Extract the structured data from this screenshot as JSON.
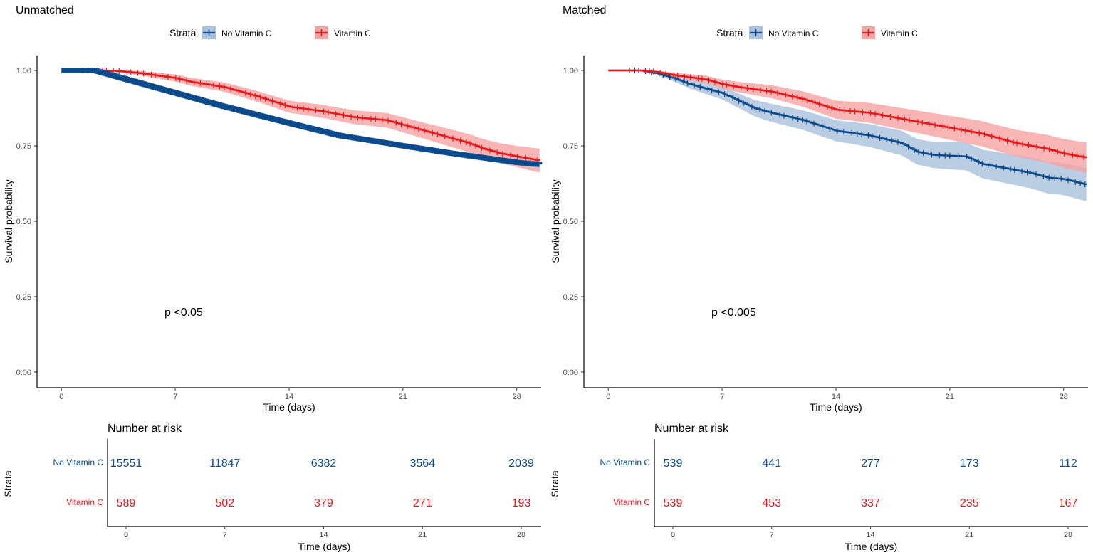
{
  "legend_title": "Strata",
  "axis_labels": {
    "y_main": "Survival probability",
    "x_main": "Time (days)",
    "risk_title": "Number at risk",
    "risk_ylabel": "Strata",
    "risk_x": "Time (days)"
  },
  "colors": {
    "no_vitc": "#0b4a8b",
    "vitc": "#e41a1c",
    "no_vitc_band": "#a9c1dc",
    "vitc_band": "#f5a3a3"
  },
  "chart_data": [
    {
      "type": "line",
      "title": "Unmatched",
      "xlabel": "Time (days)",
      "ylabel": "Survival probability",
      "xlim": [
        -1.5,
        29.5
      ],
      "ylim": [
        0,
        1
      ],
      "x_ticks": [
        0,
        7,
        14,
        21,
        28
      ],
      "y_ticks": [
        0.0,
        0.25,
        0.5,
        0.75,
        1.0
      ],
      "y_tick_labels": [
        "0.00",
        "0.25",
        "0.50",
        "0.75",
        "1.00"
      ],
      "pvalue": "p <0.05",
      "legend": [
        "No Vitamin C",
        "Vitamin C"
      ],
      "series": [
        {
          "name": "No Vitamin C",
          "points": [
            [
              0,
              1.0
            ],
            [
              1.2,
              1.0
            ],
            [
              2.0,
              1.0
            ],
            [
              3,
              0.985
            ],
            [
              5,
              0.955
            ],
            [
              7,
              0.925
            ],
            [
              10,
              0.88
            ],
            [
              14,
              0.825
            ],
            [
              17,
              0.785
            ],
            [
              21,
              0.75
            ],
            [
              24,
              0.725
            ],
            [
              28,
              0.695
            ],
            [
              29.5,
              0.688
            ]
          ],
          "ci_half": [
            [
              0,
              0
            ],
            [
              2,
              0
            ],
            [
              6,
              0.004
            ],
            [
              14,
              0.006
            ],
            [
              21,
              0.007
            ],
            [
              28,
              0.01
            ],
            [
              29.5,
              0.012
            ]
          ]
        },
        {
          "name": "Vitamin C",
          "points": [
            [
              0,
              1.0
            ],
            [
              2.5,
              1.0
            ],
            [
              3.5,
              0.998
            ],
            [
              5,
              0.99
            ],
            [
              7,
              0.975
            ],
            [
              8,
              0.962
            ],
            [
              10,
              0.945
            ],
            [
              12,
              0.915
            ],
            [
              14,
              0.88
            ],
            [
              16,
              0.865
            ],
            [
              18,
              0.845
            ],
            [
              20,
              0.835
            ],
            [
              21,
              0.82
            ],
            [
              23,
              0.79
            ],
            [
              25,
              0.76
            ],
            [
              26,
              0.74
            ],
            [
              27,
              0.725
            ],
            [
              28,
              0.715
            ],
            [
              29.5,
              0.7
            ]
          ],
          "ci_half": [
            [
              0,
              0
            ],
            [
              3,
              0.003
            ],
            [
              7,
              0.012
            ],
            [
              14,
              0.02
            ],
            [
              21,
              0.025
            ],
            [
              25,
              0.03
            ],
            [
              28,
              0.035
            ],
            [
              29.5,
              0.04
            ]
          ]
        }
      ],
      "risk_table": {
        "times": [
          0,
          7,
          14,
          21,
          28
        ],
        "rows": [
          {
            "label": "No Vitamin C",
            "values": [
              "15551",
              "11847",
              "6382",
              "3564",
              "2039"
            ]
          },
          {
            "label": "Vitamin C",
            "values": [
              "589",
              "502",
              "379",
              "271",
              "193"
            ]
          }
        ]
      }
    },
    {
      "type": "line",
      "title": "Matched",
      "xlabel": "Time (days)",
      "ylabel": "Survival probability",
      "xlim": [
        -1.5,
        29.5
      ],
      "ylim": [
        0,
        1
      ],
      "x_ticks": [
        0,
        7,
        14,
        21,
        28
      ],
      "y_ticks": [
        0.0,
        0.25,
        0.5,
        0.75,
        1.0
      ],
      "y_tick_labels": [
        "0.00",
        "0.25",
        "0.50",
        "0.75",
        "1.00"
      ],
      "pvalue": "p <0.005",
      "legend": [
        "No Vitamin C",
        "Vitamin C"
      ],
      "series": [
        {
          "name": "No Vitamin C",
          "points": [
            [
              0,
              1.0
            ],
            [
              2,
              1.0
            ],
            [
              3,
              0.99
            ],
            [
              4,
              0.975
            ],
            [
              5,
              0.955
            ],
            [
              6,
              0.94
            ],
            [
              7,
              0.925
            ],
            [
              8,
              0.9
            ],
            [
              9,
              0.875
            ],
            [
              10,
              0.86
            ],
            [
              12,
              0.835
            ],
            [
              14,
              0.8
            ],
            [
              16,
              0.785
            ],
            [
              18,
              0.76
            ],
            [
              19,
              0.73
            ],
            [
              20,
              0.72
            ],
            [
              22,
              0.715
            ],
            [
              23,
              0.69
            ],
            [
              24,
              0.68
            ],
            [
              26,
              0.66
            ],
            [
              27,
              0.645
            ],
            [
              28,
              0.64
            ],
            [
              29.5,
              0.62
            ]
          ],
          "ci_half": [
            [
              0,
              0
            ],
            [
              2,
              0
            ],
            [
              5,
              0.015
            ],
            [
              10,
              0.03
            ],
            [
              14,
              0.035
            ],
            [
              21,
              0.045
            ],
            [
              25,
              0.05
            ],
            [
              29.5,
              0.055
            ]
          ]
        },
        {
          "name": "Vitamin C",
          "points": [
            [
              0,
              1.0
            ],
            [
              2,
              1.0
            ],
            [
              3,
              0.995
            ],
            [
              4,
              0.985
            ],
            [
              6,
              0.97
            ],
            [
              7,
              0.955
            ],
            [
              8,
              0.945
            ],
            [
              10,
              0.93
            ],
            [
              12,
              0.905
            ],
            [
              14,
              0.87
            ],
            [
              16,
              0.86
            ],
            [
              18,
              0.84
            ],
            [
              20,
              0.82
            ],
            [
              21,
              0.81
            ],
            [
              23,
              0.79
            ],
            [
              25,
              0.76
            ],
            [
              26,
              0.75
            ],
            [
              27,
              0.74
            ],
            [
              28,
              0.725
            ],
            [
              29.5,
              0.71
            ]
          ],
          "ci_half": [
            [
              0,
              0
            ],
            [
              2,
              0
            ],
            [
              4,
              0.008
            ],
            [
              7,
              0.015
            ],
            [
              14,
              0.03
            ],
            [
              21,
              0.04
            ],
            [
              26,
              0.045
            ],
            [
              29.5,
              0.05
            ]
          ]
        }
      ],
      "risk_table": {
        "times": [
          0,
          7,
          14,
          21,
          28
        ],
        "rows": [
          {
            "label": "No Vitamin C",
            "values": [
              "539",
              "441",
              "277",
              "173",
              "112"
            ]
          },
          {
            "label": "Vitamin C",
            "values": [
              "539",
              "453",
              "337",
              "235",
              "167"
            ]
          }
        ]
      }
    }
  ]
}
